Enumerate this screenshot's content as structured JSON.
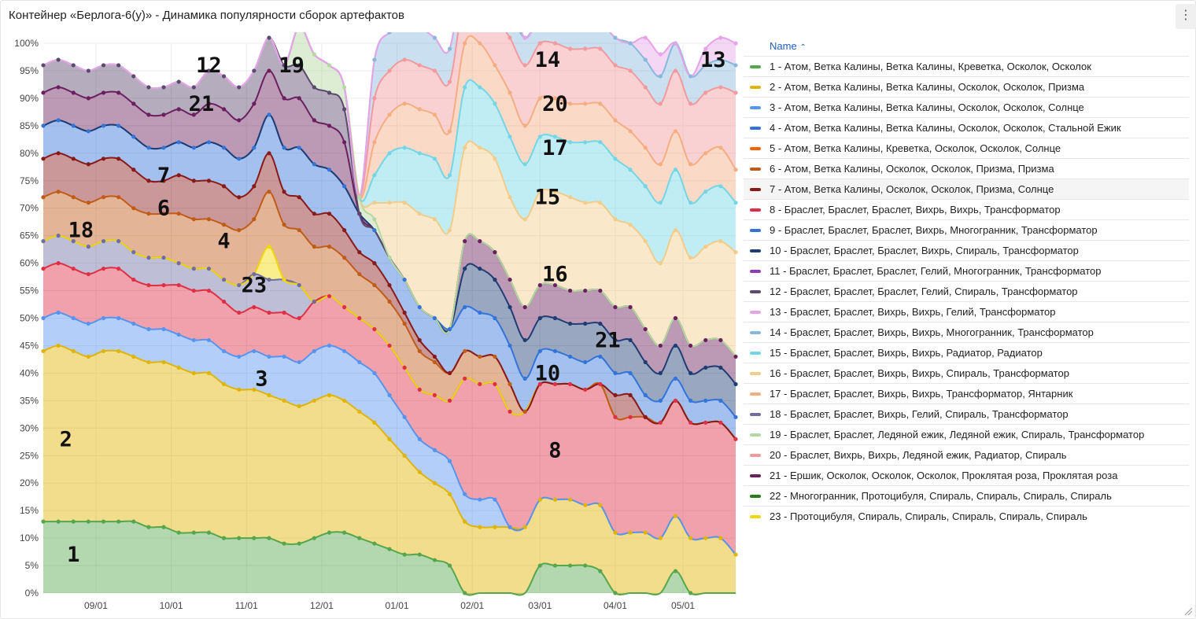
{
  "title": "Контейнер «Берлога-6(у)» - Динамика популярности сборок артефактов",
  "menu_icon": "more-vertical-icon",
  "legend": {
    "header_label": "Name",
    "sort_indicator": "⌃",
    "highlighted_index": 6,
    "items": [
      {
        "label": "1 - Атом, Ветка Калины, Ветка Калины, Креветка, Осколок, Осколок",
        "color": "#56a64b"
      },
      {
        "label": "2 - Атом, Ветка Калины, Ветка Калины, Осколок, Осколок, Призма",
        "color": "#e0b400"
      },
      {
        "label": "3 - Атом, Ветка Калины, Ветка Калины, Осколок, Осколок, Солнце",
        "color": "#5794f2"
      },
      {
        "label": "4 - Атом, Ветка Калины, Ветка Калины, Осколок, Осколок, Стальной Ежик",
        "color": "#3274d9"
      },
      {
        "label": "5 - Атом, Ветка Калины, Креветка, Осколок, Осколок, Солнце",
        "color": "#fa6400"
      },
      {
        "label": "6 - Атом, Ветка Калины, Осколок, Осколок, Призма, Призма",
        "color": "#c15c17"
      },
      {
        "label": "7 - Атом, Ветка Калины, Осколок, Осколок, Призма, Солнце",
        "color": "#8a1a1a"
      },
      {
        "label": "8 - Браслет, Браслет, Браслет, Вихрь, Вихрь, Трансформатор",
        "color": "#e02f44"
      },
      {
        "label": "9 - Браслет, Браслет, Браслет, Вихрь, Многогранник, Трансформатор",
        "color": "#3274d9"
      },
      {
        "label": "10 - Браслет, Браслет, Браслет, Вихрь, Спираль, Трансформатор",
        "color": "#1f3c73"
      },
      {
        "label": "11 - Браслет, Браслет, Браслет, Гелий, Многогранник, Трансформатор",
        "color": "#8f3bb8"
      },
      {
        "label": "12 - Браслет, Браслет, Браслет, Гелий, Спираль, Трансформатор",
        "color": "#5a4a6e"
      },
      {
        "label": "13 - Браслет, Браслет, Вихрь, Вихрь, Гелий, Трансформатор",
        "color": "#e6a3e8"
      },
      {
        "label": "14 - Браслет, Браслет, Вихрь, Вихрь, Многогранник, Трансформатор",
        "color": "#8ab8dc"
      },
      {
        "label": "15 - Браслет, Браслет, Вихрь, Вихрь, Радиатор, Радиатор",
        "color": "#73d6e6"
      },
      {
        "label": "16 - Браслет, Браслет, Вихрь, Вихрь, Спираль, Трансформатор",
        "color": "#f2cc8a"
      },
      {
        "label": "17 - Браслет, Браслет, Вихрь, Вихрь, Трансформатор, Янтарник",
        "color": "#f5ad82"
      },
      {
        "label": "18 - Браслет, Браслет, Вихрь, Гелий, Спираль, Трансформатор",
        "color": "#6e6ea3"
      },
      {
        "label": "19 - Браслет, Браслет, Ледяной ежик, Ледяной ежик, Спираль, Трансформатор",
        "color": "#b4d8a0"
      },
      {
        "label": "20 - Браслет, Вихрь, Вихрь, Ледяной ежик, Радиатор, Спираль",
        "color": "#f29a9e"
      },
      {
        "label": "21 - Ершик, Осколок, Осколок, Осколок, Проклятая роза, Проклятая роза",
        "color": "#6b1f5e"
      },
      {
        "label": "22 - Многогранник, Протоцибуля, Спираль, Спираль, Спираль, Спираль",
        "color": "#2c7a1e"
      },
      {
        "label": "23 - Протоцибуля, Спираль, Спираль, Спираль, Спираль, Спираль",
        "color": "#f2d600"
      }
    ]
  },
  "chart_data": {
    "type": "area",
    "stacked": "percent",
    "ylim": [
      0,
      100
    ],
    "y_ticks": [
      "0%",
      "5%",
      "10%",
      "15%",
      "20%",
      "25%",
      "30%",
      "35%",
      "40%",
      "45%",
      "50%",
      "55%",
      "60%",
      "65%",
      "70%",
      "75%",
      "80%",
      "85%",
      "90%",
      "95%",
      "100%"
    ],
    "x_ticks": [
      {
        "label": "09/01",
        "x": 7
      },
      {
        "label": "10/01",
        "x": 17
      },
      {
        "label": "11/01",
        "x": 27
      },
      {
        "label": "12/01",
        "x": 37
      },
      {
        "label": "01/01",
        "x": 47
      },
      {
        "label": "02/01",
        "x": 57
      },
      {
        "label": "03/01",
        "x": 66
      },
      {
        "label": "04/01",
        "x": 76
      },
      {
        "label": "05/01",
        "x": 85
      }
    ],
    "x": [
      0,
      2,
      4,
      6,
      8,
      10,
      12,
      14,
      16,
      18,
      20,
      22,
      24,
      26,
      28,
      30,
      32,
      34,
      36,
      38,
      40,
      42,
      44,
      46,
      48,
      50,
      52,
      54,
      56,
      58,
      60,
      62,
      64,
      66,
      68,
      70,
      72,
      74,
      76,
      78,
      80,
      82,
      84,
      86,
      88,
      90,
      92
    ],
    "series": [
      {
        "name": "1",
        "values": [
          13,
          13,
          13,
          13,
          13,
          13,
          13,
          12,
          12,
          11,
          11,
          11,
          10,
          10,
          10,
          10,
          9,
          9,
          10,
          11,
          11,
          10,
          9,
          8,
          7,
          7,
          6,
          5,
          0,
          0,
          0,
          0,
          0,
          5,
          5,
          5,
          5,
          4,
          0,
          0,
          0,
          0,
          4,
          0,
          0,
          0,
          0
        ]
      },
      {
        "name": "2",
        "values": [
          31,
          32,
          31,
          30,
          31,
          31,
          30,
          30,
          30,
          30,
          29,
          29,
          28,
          27,
          27,
          26,
          26,
          25,
          25,
          25,
          24,
          23,
          22,
          20,
          18,
          15,
          14,
          13,
          13,
          12,
          12,
          12,
          12,
          12,
          12,
          12,
          11,
          12,
          11,
          11,
          11,
          10,
          10,
          10,
          10,
          10,
          7
        ]
      },
      {
        "name": "3",
        "values": [
          6,
          6,
          6,
          6,
          6,
          6,
          6,
          6,
          6,
          6,
          6,
          6,
          6,
          6,
          7,
          7,
          8,
          8,
          9,
          9,
          9,
          9,
          9,
          8,
          7,
          6,
          6,
          6,
          5,
          5,
          5,
          0,
          0,
          0,
          0,
          0,
          0,
          0,
          0,
          0,
          0,
          0,
          0,
          0,
          0,
          0,
          0
        ]
      },
      {
        "name": "8",
        "values": [
          9,
          9,
          9,
          9,
          9,
          9,
          8,
          8,
          8,
          9,
          9,
          9,
          9,
          8,
          8,
          8,
          8,
          8,
          9,
          9,
          8,
          8,
          8,
          9,
          9,
          9,
          10,
          11,
          21,
          21,
          21,
          21,
          21,
          21,
          21,
          21,
          21,
          22,
          21,
          21,
          21,
          21,
          21,
          21,
          21,
          21,
          21
        ]
      },
      {
        "name": "18",
        "values": [
          5,
          5,
          5,
          5,
          5,
          5,
          5,
          5,
          5,
          4,
          4,
          4,
          4,
          5,
          6,
          6,
          6,
          6,
          0,
          0,
          0,
          0,
          0,
          0,
          0,
          0,
          0,
          0,
          0,
          0,
          0,
          0,
          0,
          0,
          0,
          0,
          0,
          0,
          0,
          0,
          0,
          0,
          0,
          0,
          0,
          0,
          0
        ]
      },
      {
        "name": "23",
        "values": [
          0,
          0,
          0,
          0,
          0,
          0,
          0,
          0,
          0,
          0,
          0,
          0,
          0,
          0,
          0,
          6,
          0,
          0,
          0,
          0,
          0,
          0,
          0,
          0,
          0,
          0,
          0,
          0,
          0,
          0,
          0,
          0,
          0,
          0,
          0,
          0,
          0,
          0,
          0,
          0,
          0,
          0,
          0,
          0,
          0,
          0,
          0
        ]
      },
      {
        "name": "6",
        "values": [
          8,
          8,
          8,
          8,
          8,
          8,
          8,
          8,
          8,
          9,
          9,
          9,
          10,
          10,
          10,
          10,
          10,
          10,
          10,
          9,
          9,
          8,
          8,
          8,
          8,
          7,
          6,
          5,
          5,
          5,
          5,
          5,
          0,
          0,
          0,
          0,
          0,
          0,
          0,
          0,
          0,
          0,
          0,
          0,
          0,
          0,
          0
        ]
      },
      {
        "name": "7",
        "values": [
          7,
          7,
          7,
          7,
          7,
          7,
          7,
          6,
          6,
          7,
          7,
          7,
          7,
          6,
          6,
          7,
          6,
          6,
          6,
          6,
          5,
          4,
          4,
          3,
          2,
          2,
          1,
          0,
          0,
          0,
          0,
          0,
          0,
          0,
          0,
          0,
          0,
          0,
          4,
          4,
          0,
          0,
          0,
          0,
          0,
          0,
          0
        ]
      },
      {
        "name": "4",
        "values": [
          6,
          6,
          6,
          6,
          6,
          6,
          6,
          6,
          6,
          6,
          6,
          7,
          7,
          7,
          7,
          7,
          8,
          9,
          9,
          8,
          8,
          7,
          6,
          5,
          6,
          6,
          7,
          8,
          8,
          8,
          7,
          7,
          6,
          6,
          6,
          5,
          5,
          5,
          4,
          4,
          4,
          4,
          4,
          4,
          4,
          4,
          4
        ]
      },
      {
        "name": "10",
        "values": [
          0,
          0,
          0,
          0,
          0,
          0,
          0,
          0,
          0,
          0,
          0,
          0,
          0,
          0,
          0,
          0,
          0,
          0,
          0,
          0,
          0,
          0,
          0,
          0,
          0,
          0,
          0,
          0,
          7,
          8,
          7,
          7,
          7,
          6,
          6,
          6,
          7,
          6,
          6,
          6,
          6,
          5,
          6,
          5,
          6,
          6,
          6
        ]
      },
      {
        "name": "21",
        "values": [
          6,
          6,
          6,
          6,
          6,
          6,
          6,
          6,
          6,
          6,
          6,
          7,
          7,
          7,
          8,
          8,
          9,
          9,
          8,
          8,
          8,
          0,
          0,
          0,
          0,
          0,
          0,
          0,
          5,
          5,
          5,
          5,
          6,
          6,
          6,
          6,
          6,
          6,
          6,
          6,
          6,
          5,
          5,
          5,
          5,
          5,
          5
        ]
      },
      {
        "name": "12",
        "values": [
          5,
          5,
          5,
          5,
          5,
          5,
          5,
          5,
          5,
          5,
          5,
          6,
          6,
          6,
          6,
          6,
          6,
          6,
          6,
          6,
          6,
          0,
          0,
          0,
          0,
          0,
          0,
          0,
          0,
          0,
          0,
          0,
          0,
          0,
          0,
          0,
          0,
          0,
          0,
          0,
          0,
          0,
          0,
          0,
          0,
          0,
          0
        ]
      },
      {
        "name": "19",
        "values": [
          0,
          0,
          0,
          0,
          0,
          0,
          0,
          0,
          0,
          0,
          0,
          0,
          0,
          0,
          0,
          0,
          0,
          7,
          6,
          5,
          4,
          3,
          2,
          0,
          0,
          0,
          0,
          0,
          0,
          0,
          0,
          0,
          0,
          0,
          0,
          0,
          0,
          0,
          0,
          0,
          0,
          0,
          0,
          0,
          0,
          0,
          0
        ]
      },
      {
        "name": "16",
        "values": [
          0,
          0,
          0,
          0,
          0,
          0,
          0,
          0,
          0,
          0,
          0,
          0,
          0,
          0,
          0,
          0,
          0,
          0,
          0,
          0,
          0,
          0,
          3,
          10,
          14,
          17,
          18,
          18,
          17,
          17,
          17,
          15,
          16,
          17,
          17,
          17,
          16,
          16,
          16,
          15,
          16,
          15,
          16,
          16,
          17,
          18,
          19
        ]
      },
      {
        "name": "15",
        "values": [
          0,
          0,
          0,
          0,
          0,
          0,
          0,
          0,
          0,
          0,
          0,
          0,
          0,
          0,
          0,
          0,
          0,
          0,
          0,
          0,
          0,
          0,
          5,
          9,
          10,
          11,
          11,
          10,
          11,
          11,
          10,
          11,
          10,
          10,
          10,
          10,
          11,
          11,
          11,
          10,
          10,
          11,
          11,
          10,
          10,
          10,
          9
        ]
      },
      {
        "name": "17",
        "values": [
          0,
          0,
          0,
          0,
          0,
          0,
          0,
          0,
          0,
          0,
          0,
          0,
          0,
          0,
          0,
          0,
          0,
          0,
          0,
          0,
          0,
          0,
          6,
          7,
          8,
          8,
          8,
          8,
          8,
          8,
          7,
          8,
          7,
          7,
          7,
          7,
          7,
          7,
          7,
          7,
          7,
          7,
          7,
          7,
          7,
          7,
          6
        ]
      },
      {
        "name": "20",
        "values": [
          0,
          0,
          0,
          0,
          0,
          0,
          0,
          0,
          0,
          0,
          0,
          0,
          0,
          0,
          0,
          0,
          0,
          0,
          0,
          0,
          0,
          0,
          8,
          8,
          8,
          8,
          8,
          9,
          9,
          9,
          9,
          10,
          11,
          10,
          10,
          10,
          10,
          10,
          10,
          11,
          11,
          11,
          11,
          11,
          11,
          11,
          14
        ]
      },
      {
        "name": "14",
        "values": [
          0,
          0,
          0,
          0,
          0,
          0,
          0,
          0,
          0,
          0,
          0,
          0,
          0,
          0,
          0,
          0,
          0,
          0,
          0,
          0,
          0,
          0,
          7,
          7,
          7,
          7,
          6,
          6,
          6,
          5,
          5,
          5,
          5,
          5,
          5,
          5,
          5,
          5,
          5,
          5,
          5,
          5,
          5,
          5,
          5,
          5,
          5
        ]
      },
      {
        "name": "13",
        "values": [
          0,
          0,
          0,
          0,
          0,
          0,
          0,
          0,
          0,
          0,
          0,
          0,
          0,
          0,
          0,
          0,
          0,
          0,
          0,
          0,
          0,
          0,
          0,
          0,
          0,
          0,
          0,
          0,
          0,
          0,
          4,
          3,
          0,
          0,
          0,
          0,
          0,
          0,
          0,
          0,
          4,
          4,
          0,
          0,
          3,
          4,
          4
        ]
      }
    ],
    "annotations": [
      {
        "text": "1",
        "x": 4,
        "y": 7
      },
      {
        "text": "2",
        "x": 3,
        "y": 28
      },
      {
        "text": "3",
        "x": 29,
        "y": 39
      },
      {
        "text": "4",
        "x": 24,
        "y": 64
      },
      {
        "text": "6",
        "x": 16,
        "y": 70
      },
      {
        "text": "7",
        "x": 16,
        "y": 76
      },
      {
        "text": "8",
        "x": 68,
        "y": 26
      },
      {
        "text": "10",
        "x": 67,
        "y": 40
      },
      {
        "text": "12",
        "x": 22,
        "y": 96
      },
      {
        "text": "13",
        "x": 89,
        "y": 97
      },
      {
        "text": "14",
        "x": 67,
        "y": 97
      },
      {
        "text": "15",
        "x": 67,
        "y": 72
      },
      {
        "text": "16",
        "x": 68,
        "y": 58
      },
      {
        "text": "17",
        "x": 68,
        "y": 81
      },
      {
        "text": "18",
        "x": 5,
        "y": 66
      },
      {
        "text": "19",
        "x": 33,
        "y": 96
      },
      {
        "text": "20",
        "x": 68,
        "y": 89
      },
      {
        "text": "21",
        "x": 21,
        "y": 89
      },
      {
        "text": "21",
        "x": 75,
        "y": 46
      },
      {
        "text": "23",
        "x": 28,
        "y": 56
      }
    ]
  }
}
